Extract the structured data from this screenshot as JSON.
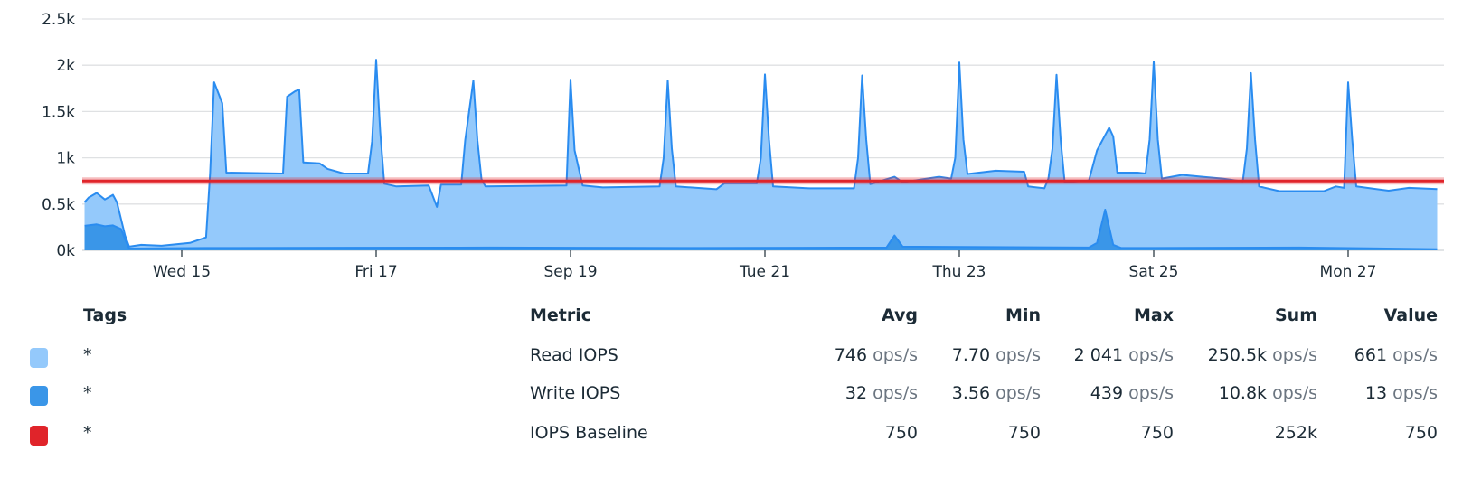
{
  "chart_data": {
    "type": "area",
    "ylim": [
      0,
      2500
    ],
    "yticks": [
      "0k",
      "0.5k",
      "1k",
      "1.5k",
      "2k",
      "2.5k"
    ],
    "ytick_values": [
      0,
      500,
      1000,
      1500,
      2000,
      2500
    ],
    "xticks": [
      {
        "label": "Wed 15",
        "at": "Sep 15 00:00"
      },
      {
        "label": "Fri 17",
        "at": "Sep 17 00:00"
      },
      {
        "label": "Sep 19",
        "at": "Sep 19 00:00"
      },
      {
        "label": "Tue 21",
        "at": "Sep 21 00:00"
      },
      {
        "label": "Thu 23",
        "at": "Sep 23 00:00"
      },
      {
        "label": "Sat 25",
        "at": "Sep 25 00:00"
      },
      {
        "label": "Mon 27",
        "at": "Sep 27 00:00"
      }
    ],
    "grid": true,
    "series": [
      {
        "name": "Read IOPS",
        "color": "#94c9fb",
        "line_color": "#2a8cf0",
        "points": [
          [
            "Sep 14 00:00",
            520
          ],
          [
            "Sep 14 01:00",
            570
          ],
          [
            "Sep 14 03:00",
            620
          ],
          [
            "Sep 14 05:00",
            550
          ],
          [
            "Sep 14 07:00",
            600
          ],
          [
            "Sep 14 08:00",
            520
          ],
          [
            "Sep 14 10:00",
            160
          ],
          [
            "Sep 14 11:00",
            40
          ],
          [
            "Sep 14 14:00",
            60
          ],
          [
            "Sep 14 19:00",
            50
          ],
          [
            "Sep 15 02:00",
            80
          ],
          [
            "Sep 15 06:00",
            140
          ],
          [
            "Sep 15 07:00",
            840
          ],
          [
            "Sep 15 08:00",
            1815
          ],
          [
            "Sep 15 10:00",
            1590
          ],
          [
            "Sep 15 11:00",
            840
          ],
          [
            "Sep 16 01:00",
            830
          ],
          [
            "Sep 16 02:00",
            1660
          ],
          [
            "Sep 16 04:00",
            1720
          ],
          [
            "Sep 16 05:00",
            1735
          ],
          [
            "Sep 16 06:00",
            950
          ],
          [
            "Sep 16 10:00",
            940
          ],
          [
            "Sep 16 12:00",
            880
          ],
          [
            "Sep 16 16:00",
            830
          ],
          [
            "Sep 16 22:00",
            830
          ],
          [
            "Sep 16 23:00",
            1180
          ],
          [
            "Sep 17 00:00",
            2060
          ],
          [
            "Sep 17 01:00",
            1280
          ],
          [
            "Sep 17 02:00",
            720
          ],
          [
            "Sep 17 05:00",
            690
          ],
          [
            "Sep 17 13:00",
            700
          ],
          [
            "Sep 17 15:00",
            470
          ],
          [
            "Sep 17 16:00",
            710
          ],
          [
            "Sep 17 21:00",
            710
          ],
          [
            "Sep 17 22:00",
            1190
          ],
          [
            "Sep 18 00:00",
            1835
          ],
          [
            "Sep 18 01:00",
            1190
          ],
          [
            "Sep 18 02:00",
            770
          ],
          [
            "Sep 18 03:00",
            690
          ],
          [
            "Sep 18 23:00",
            700
          ],
          [
            "Sep 19 00:00",
            1845
          ],
          [
            "Sep 19 01:00",
            1080
          ],
          [
            "Sep 19 03:00",
            700
          ],
          [
            "Sep 19 08:00",
            680
          ],
          [
            "Sep 19 22:00",
            690
          ],
          [
            "Sep 19 23:00",
            1000
          ],
          [
            "Sep 20 00:00",
            1835
          ],
          [
            "Sep 20 01:00",
            1100
          ],
          [
            "Sep 20 02:00",
            690
          ],
          [
            "Sep 20 12:00",
            660
          ],
          [
            "Sep 20 14:00",
            725
          ],
          [
            "Sep 20 22:00",
            725
          ],
          [
            "Sep 20 23:00",
            1000
          ],
          [
            "Sep 21 00:00",
            1900
          ],
          [
            "Sep 21 01:00",
            1200
          ],
          [
            "Sep 21 02:00",
            690
          ],
          [
            "Sep 21 11:00",
            670
          ],
          [
            "Sep 21 22:00",
            670
          ],
          [
            "Sep 21 23:00",
            1000
          ],
          [
            "Sep 22 00:00",
            1890
          ],
          [
            "Sep 22 01:00",
            1200
          ],
          [
            "Sep 22 02:00",
            715
          ],
          [
            "Sep 22 08:00",
            795
          ],
          [
            "Sep 22 10:00",
            735
          ],
          [
            "Sep 22 19:00",
            795
          ],
          [
            "Sep 22 22:00",
            775
          ],
          [
            "Sep 22 23:00",
            1000
          ],
          [
            "Sep 23 00:00",
            2030
          ],
          [
            "Sep 23 01:00",
            1200
          ],
          [
            "Sep 23 02:00",
            825
          ],
          [
            "Sep 23 09:00",
            860
          ],
          [
            "Sep 23 16:00",
            850
          ],
          [
            "Sep 23 17:00",
            690
          ],
          [
            "Sep 23 21:00",
            670
          ],
          [
            "Sep 23 22:00",
            775
          ],
          [
            "Sep 23 23:00",
            1100
          ],
          [
            "Sep 24 00:00",
            1897
          ],
          [
            "Sep 24 01:00",
            1200
          ],
          [
            "Sep 24 02:00",
            735
          ],
          [
            "Sep 24 08:00",
            755
          ],
          [
            "Sep 24 10:00",
            1080
          ],
          [
            "Sep 24 13:00",
            1325
          ],
          [
            "Sep 24 14:00",
            1230
          ],
          [
            "Sep 24 15:00",
            840
          ],
          [
            "Sep 24 20:00",
            840
          ],
          [
            "Sep 24 22:00",
            830
          ],
          [
            "Sep 24 23:00",
            1200
          ],
          [
            "Sep 25 00:00",
            2040
          ],
          [
            "Sep 25 01:00",
            1200
          ],
          [
            "Sep 25 02:00",
            775
          ],
          [
            "Sep 25 07:00",
            815
          ],
          [
            "Sep 25 12:00",
            795
          ],
          [
            "Sep 25 17:00",
            775
          ],
          [
            "Sep 25 22:00",
            745
          ],
          [
            "Sep 25 23:00",
            1100
          ],
          [
            "Sep 26 00:00",
            1915
          ],
          [
            "Sep 26 01:00",
            1200
          ],
          [
            "Sep 26 02:00",
            690
          ],
          [
            "Sep 26 07:00",
            640
          ],
          [
            "Sep 26 18:00",
            640
          ],
          [
            "Sep 26 21:00",
            690
          ],
          [
            "Sep 26 23:00",
            675
          ],
          [
            "Sep 27 00:00",
            1815
          ],
          [
            "Sep 27 01:00",
            1200
          ],
          [
            "Sep 27 02:00",
            690
          ],
          [
            "Sep 27 10:00",
            645
          ],
          [
            "Sep 27 15:00",
            675
          ],
          [
            "Sep 27 22:00",
            661
          ]
        ]
      },
      {
        "name": "Write IOPS",
        "color": "#3a96e8",
        "line_color": "#2a8cf0",
        "points": [
          [
            "Sep 14 00:00",
            265
          ],
          [
            "Sep 14 03:00",
            280
          ],
          [
            "Sep 14 05:00",
            260
          ],
          [
            "Sep 14 07:00",
            270
          ],
          [
            "Sep 14 09:00",
            230
          ],
          [
            "Sep 14 10:00",
            120
          ],
          [
            "Sep 14 11:00",
            20
          ],
          [
            "Sep 15 06:00",
            25
          ],
          [
            "Sep 18 04:00",
            30
          ],
          [
            "Sep 20 06:00",
            25
          ],
          [
            "Sep 22 06:00",
            30
          ],
          [
            "Sep 22 08:00",
            160
          ],
          [
            "Sep 22 10:00",
            40
          ],
          [
            "Sep 24 08:00",
            30
          ],
          [
            "Sep 24 10:00",
            80
          ],
          [
            "Sep 24 12:00",
            439
          ],
          [
            "Sep 24 14:00",
            60
          ],
          [
            "Sep 24 16:00",
            25
          ],
          [
            "Sep 26 12:00",
            30
          ],
          [
            "Sep 27 22:00",
            13
          ]
        ]
      },
      {
        "name": "IOPS Baseline",
        "color": "#e0242a",
        "constant": 750
      }
    ]
  },
  "legend": {
    "headers": {
      "tags": "Tags",
      "metric": "Metric",
      "avg": "Avg",
      "min": "Min",
      "max": "Max",
      "sum": "Sum",
      "value": "Value"
    },
    "rows": [
      {
        "color": "#94c9fb",
        "tags": "*",
        "metric": "Read IOPS",
        "avg": "746",
        "avg_unit": "ops/s",
        "min": "7.70",
        "min_unit": "ops/s",
        "max": "2 041",
        "max_unit": "ops/s",
        "sum": "250.5k",
        "sum_unit": "ops/s",
        "value": "661",
        "value_unit": "ops/s"
      },
      {
        "color": "#3a96e8",
        "tags": "*",
        "metric": "Write IOPS",
        "avg": "32",
        "avg_unit": "ops/s",
        "min": "3.56",
        "min_unit": "ops/s",
        "max": "439",
        "max_unit": "ops/s",
        "sum": "10.8k",
        "sum_unit": "ops/s",
        "value": "13",
        "value_unit": "ops/s"
      },
      {
        "color": "#e0242a",
        "tags": "*",
        "metric": "IOPS Baseline",
        "avg": "750",
        "avg_unit": "",
        "min": "750",
        "min_unit": "",
        "max": "750",
        "max_unit": "",
        "sum": "252k",
        "sum_unit": "",
        "value": "750",
        "value_unit": ""
      }
    ]
  }
}
